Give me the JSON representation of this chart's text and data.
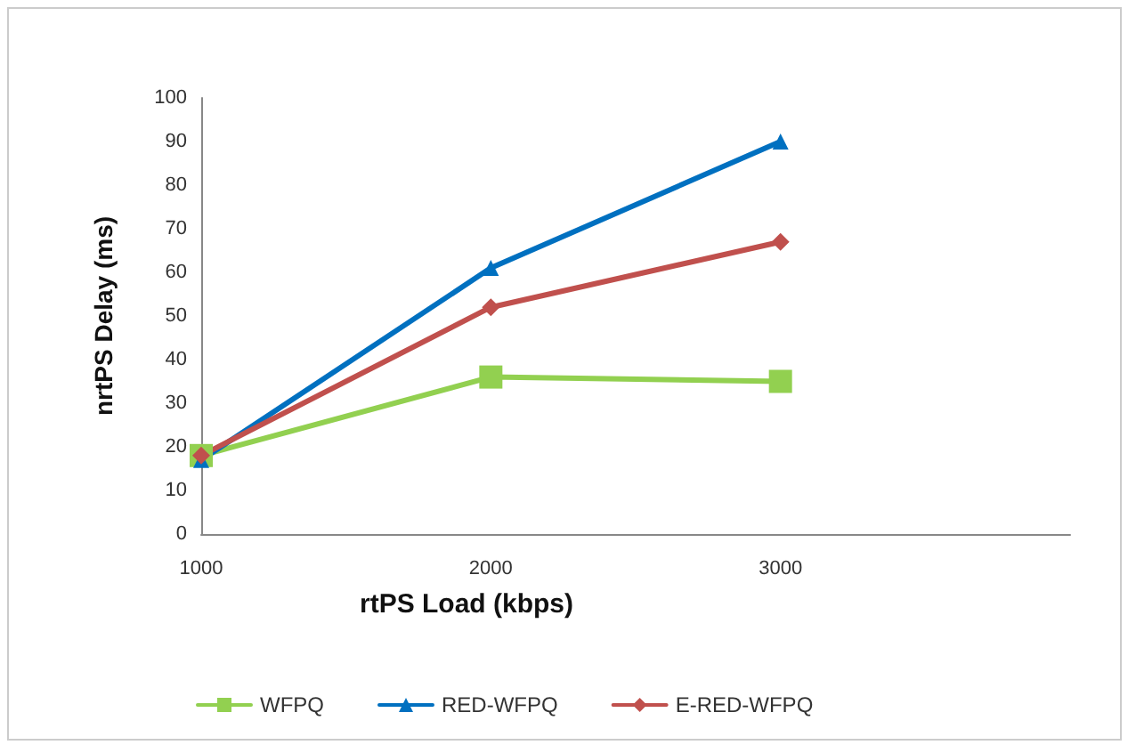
{
  "chart_data": {
    "type": "line",
    "xlabel": "rtPS Load (kbps)",
    "ylabel": "nrtPS Delay (ms)",
    "x": [
      1000,
      2000,
      3000
    ],
    "xlim": [
      1000,
      4000
    ],
    "xticks": [
      1000,
      2000,
      3000
    ],
    "ylim": [
      0,
      100
    ],
    "yticks": [
      0,
      10,
      20,
      30,
      40,
      50,
      60,
      70,
      80,
      90,
      100
    ],
    "grid": false,
    "legend": "bottom",
    "series": [
      {
        "name": "WFPQ",
        "color": "#92d050",
        "marker": "square",
        "values": [
          18,
          36,
          35
        ]
      },
      {
        "name": "RED-WFPQ",
        "color": "#0070c0",
        "marker": "triangle",
        "values": [
          17,
          61,
          90
        ]
      },
      {
        "name": "E-RED-WFPQ",
        "color": "#c0504d",
        "marker": "diamond",
        "values": [
          18,
          52,
          67
        ]
      }
    ]
  }
}
